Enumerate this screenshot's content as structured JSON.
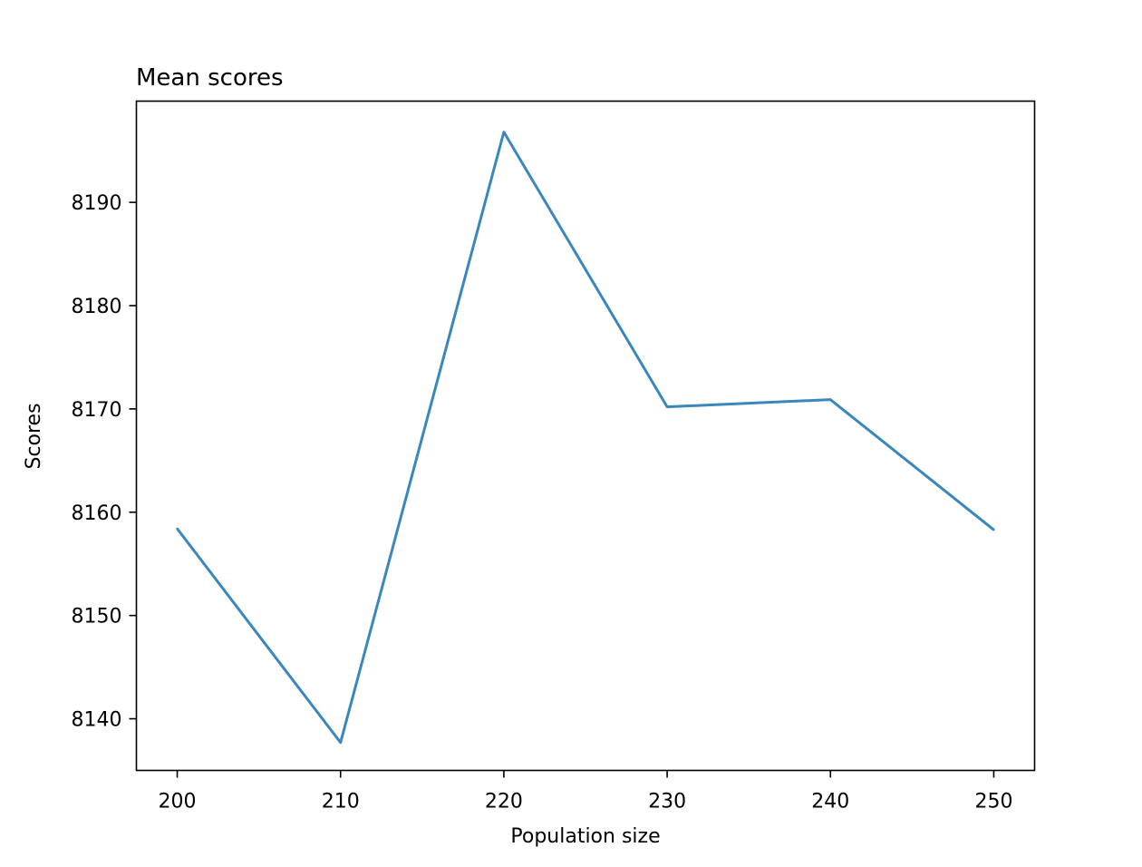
{
  "chart_data": {
    "type": "line",
    "title": "Mean scores",
    "xlabel": "Population size",
    "ylabel": "Scores",
    "x": [
      200,
      210,
      220,
      230,
      240,
      250
    ],
    "series": [
      {
        "values": [
          8158.4,
          8137.7,
          8196.8,
          8170.2,
          8170.9,
          8158.3
        ],
        "color": "#3a87bd"
      }
    ],
    "xlim": [
      197.5,
      252.5
    ],
    "ylim": [
      8135.0,
      8199.8
    ],
    "xticks": [
      200,
      210,
      220,
      230,
      240,
      250
    ],
    "yticks": [
      8140,
      8150,
      8160,
      8170,
      8180,
      8190
    ],
    "xtick_labels": [
      "200",
      "210",
      "220",
      "230",
      "240",
      "250"
    ],
    "ytick_labels": [
      "8140",
      "8150",
      "8160",
      "8170",
      "8180",
      "8190"
    ],
    "grid": false,
    "legend": "none"
  }
}
